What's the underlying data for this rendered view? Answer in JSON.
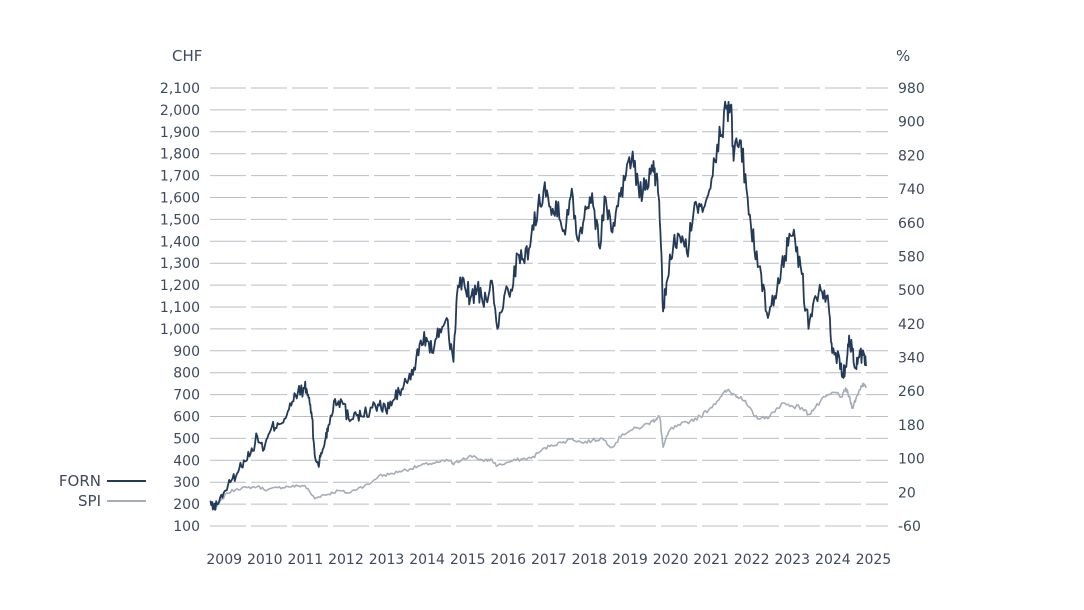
{
  "chart_data": {
    "type": "line",
    "title": "",
    "left_axis": {
      "unit": "CHF",
      "ticks": [
        100,
        200,
        300,
        400,
        500,
        600,
        700,
        800,
        900,
        1000,
        1100,
        1200,
        1300,
        1400,
        1500,
        1600,
        1700,
        1800,
        1900,
        2000,
        2100
      ],
      "ylim": [
        100,
        2100
      ]
    },
    "right_axis": {
      "unit": "%",
      "ticks": [
        -60,
        20,
        100,
        180,
        260,
        340,
        420,
        500,
        580,
        660,
        740,
        820,
        900,
        980
      ],
      "ylim": [
        -60,
        980
      ]
    },
    "x_axis": {
      "ticks": [
        "2009",
        "2010",
        "2011",
        "2012",
        "2013",
        "2014",
        "2015",
        "2016",
        "2017",
        "2018",
        "2019",
        "2020",
        "2021",
        "2022",
        "2023",
        "2024",
        "2025"
      ],
      "xlim": [
        "2009-01",
        "2025-03"
      ]
    },
    "grid": true,
    "legend_position": "left",
    "series": [
      {
        "name": "FORN",
        "axis": "left",
        "color": "#233a58",
        "points": [
          [
            "2009-01",
            210
          ],
          [
            "2009-02",
            180
          ],
          [
            "2009-03",
            200
          ],
          [
            "2009-05",
            250
          ],
          [
            "2009-07",
            300
          ],
          [
            "2009-09",
            340
          ],
          [
            "2009-11",
            400
          ],
          [
            "2010-01",
            430
          ],
          [
            "2010-03",
            510
          ],
          [
            "2010-05",
            450
          ],
          [
            "2010-07",
            540
          ],
          [
            "2010-09",
            570
          ],
          [
            "2010-11",
            590
          ],
          [
            "2011-01",
            650
          ],
          [
            "2011-03",
            710
          ],
          [
            "2011-05",
            730
          ],
          [
            "2011-06",
            700
          ],
          [
            "2011-07",
            620
          ],
          [
            "2011-08",
            420
          ],
          [
            "2011-09",
            380
          ],
          [
            "2011-10",
            430
          ],
          [
            "2011-11",
            490
          ],
          [
            "2011-12",
            560
          ],
          [
            "2012-02",
            680
          ],
          [
            "2012-04",
            670
          ],
          [
            "2012-06",
            590
          ],
          [
            "2012-08",
            620
          ],
          [
            "2012-10",
            600
          ],
          [
            "2013-01",
            640
          ],
          [
            "2013-03",
            650
          ],
          [
            "2013-05",
            630
          ],
          [
            "2013-07",
            670
          ],
          [
            "2013-09",
            710
          ],
          [
            "2013-11",
            760
          ],
          [
            "2014-01",
            790
          ],
          [
            "2014-03",
            930
          ],
          [
            "2014-05",
            960
          ],
          [
            "2014-07",
            890
          ],
          [
            "2014-09",
            1000
          ],
          [
            "2014-11",
            1050
          ],
          [
            "2015-01",
            850
          ],
          [
            "2015-02",
            1150
          ],
          [
            "2015-04",
            1230
          ],
          [
            "2015-06",
            1140
          ],
          [
            "2015-08",
            1180
          ],
          [
            "2015-10",
            1100
          ],
          [
            "2015-12",
            1220
          ],
          [
            "2016-02",
            1000
          ],
          [
            "2016-04",
            1150
          ],
          [
            "2016-06",
            1180
          ],
          [
            "2016-08",
            1340
          ],
          [
            "2016-10",
            1300
          ],
          [
            "2016-12",
            1420
          ],
          [
            "2017-02",
            1560
          ],
          [
            "2017-04",
            1670
          ],
          [
            "2017-06",
            1520
          ],
          [
            "2017-08",
            1580
          ],
          [
            "2017-10",
            1430
          ],
          [
            "2017-12",
            1640
          ],
          [
            "2018-02",
            1400
          ],
          [
            "2018-04",
            1560
          ],
          [
            "2018-06",
            1620
          ],
          [
            "2018-08",
            1380
          ],
          [
            "2018-10",
            1600
          ],
          [
            "2018-12",
            1440
          ],
          [
            "2019-02",
            1620
          ],
          [
            "2019-04",
            1700
          ],
          [
            "2019-06",
            1810
          ],
          [
            "2019-08",
            1600
          ],
          [
            "2019-10",
            1680
          ],
          [
            "2019-12",
            1720
          ],
          [
            "2020-01",
            1700
          ],
          [
            "2020-02",
            1500
          ],
          [
            "2020-03",
            1080
          ],
          [
            "2020-04",
            1210
          ],
          [
            "2020-06",
            1380
          ],
          [
            "2020-08",
            1420
          ],
          [
            "2020-10",
            1350
          ],
          [
            "2020-12",
            1530
          ],
          [
            "2021-02",
            1560
          ],
          [
            "2021-04",
            1600
          ],
          [
            "2021-06",
            1780
          ],
          [
            "2021-08",
            1880
          ],
          [
            "2021-10",
            2020
          ],
          [
            "2021-11",
            2010
          ],
          [
            "2021-12",
            1800
          ],
          [
            "2022-02",
            1860
          ],
          [
            "2022-04",
            1600
          ],
          [
            "2022-06",
            1360
          ],
          [
            "2022-08",
            1250
          ],
          [
            "2022-10",
            1050
          ],
          [
            "2022-12",
            1150
          ],
          [
            "2023-02",
            1290
          ],
          [
            "2023-04",
            1380
          ],
          [
            "2023-06",
            1410
          ],
          [
            "2023-08",
            1250
          ],
          [
            "2023-10",
            1000
          ],
          [
            "2023-12",
            1150
          ],
          [
            "2024-02",
            1170
          ],
          [
            "2024-04",
            1100
          ],
          [
            "2024-05",
            890
          ],
          [
            "2024-07",
            880
          ],
          [
            "2024-08",
            780
          ],
          [
            "2024-09",
            830
          ],
          [
            "2024-10",
            970
          ],
          [
            "2024-11",
            900
          ],
          [
            "2024-12",
            820
          ],
          [
            "2025-01",
            870
          ],
          [
            "2025-02",
            880
          ],
          [
            "2025-03",
            830
          ]
        ]
      },
      {
        "name": "SPI",
        "axis": "left",
        "color": "#a6adb7",
        "points": [
          [
            "2009-01",
            210
          ],
          [
            "2009-03",
            190
          ],
          [
            "2009-06",
            250
          ],
          [
            "2009-09",
            270
          ],
          [
            "2009-12",
            275
          ],
          [
            "2010-03",
            280
          ],
          [
            "2010-06",
            265
          ],
          [
            "2010-09",
            275
          ],
          [
            "2010-12",
            280
          ],
          [
            "2011-03",
            282
          ],
          [
            "2011-05",
            285
          ],
          [
            "2011-08",
            225
          ],
          [
            "2011-10",
            240
          ],
          [
            "2011-12",
            245
          ],
          [
            "2012-03",
            262
          ],
          [
            "2012-06",
            250
          ],
          [
            "2012-09",
            275
          ],
          [
            "2012-12",
            290
          ],
          [
            "2013-03",
            330
          ],
          [
            "2013-06",
            335
          ],
          [
            "2013-09",
            350
          ],
          [
            "2013-12",
            360
          ],
          [
            "2014-03",
            375
          ],
          [
            "2014-06",
            385
          ],
          [
            "2014-09",
            392
          ],
          [
            "2014-12",
            400
          ],
          [
            "2015-01",
            380
          ],
          [
            "2015-04",
            410
          ],
          [
            "2015-07",
            420
          ],
          [
            "2015-10",
            395
          ],
          [
            "2015-12",
            405
          ],
          [
            "2016-02",
            375
          ],
          [
            "2016-06",
            395
          ],
          [
            "2016-09",
            405
          ],
          [
            "2016-12",
            410
          ],
          [
            "2017-03",
            445
          ],
          [
            "2017-06",
            470
          ],
          [
            "2017-09",
            480
          ],
          [
            "2017-12",
            500
          ],
          [
            "2018-03",
            480
          ],
          [
            "2018-06",
            490
          ],
          [
            "2018-09",
            500
          ],
          [
            "2018-12",
            460
          ],
          [
            "2019-03",
            520
          ],
          [
            "2019-06",
            540
          ],
          [
            "2019-09",
            555
          ],
          [
            "2019-12",
            580
          ],
          [
            "2020-01",
            590
          ],
          [
            "2020-02",
            600
          ],
          [
            "2020-03",
            460
          ],
          [
            "2020-05",
            540
          ],
          [
            "2020-08",
            560
          ],
          [
            "2020-11",
            580
          ],
          [
            "2021-02",
            600
          ],
          [
            "2021-05",
            640
          ],
          [
            "2021-08",
            690
          ],
          [
            "2021-10",
            720
          ],
          [
            "2021-12",
            700
          ],
          [
            "2022-02",
            690
          ],
          [
            "2022-04",
            650
          ],
          [
            "2022-06",
            600
          ],
          [
            "2022-09",
            590
          ],
          [
            "2022-12",
            620
          ],
          [
            "2023-02",
            660
          ],
          [
            "2023-05",
            650
          ],
          [
            "2023-08",
            640
          ],
          [
            "2023-10",
            610
          ],
          [
            "2023-12",
            640
          ],
          [
            "2024-03",
            690
          ],
          [
            "2024-06",
            710
          ],
          [
            "2024-08",
            690
          ],
          [
            "2024-09",
            730
          ],
          [
            "2024-10",
            690
          ],
          [
            "2024-11",
            640
          ],
          [
            "2024-12",
            680
          ],
          [
            "2025-01",
            720
          ],
          [
            "2025-02",
            750
          ],
          [
            "2025-03",
            730
          ]
        ]
      }
    ]
  }
}
